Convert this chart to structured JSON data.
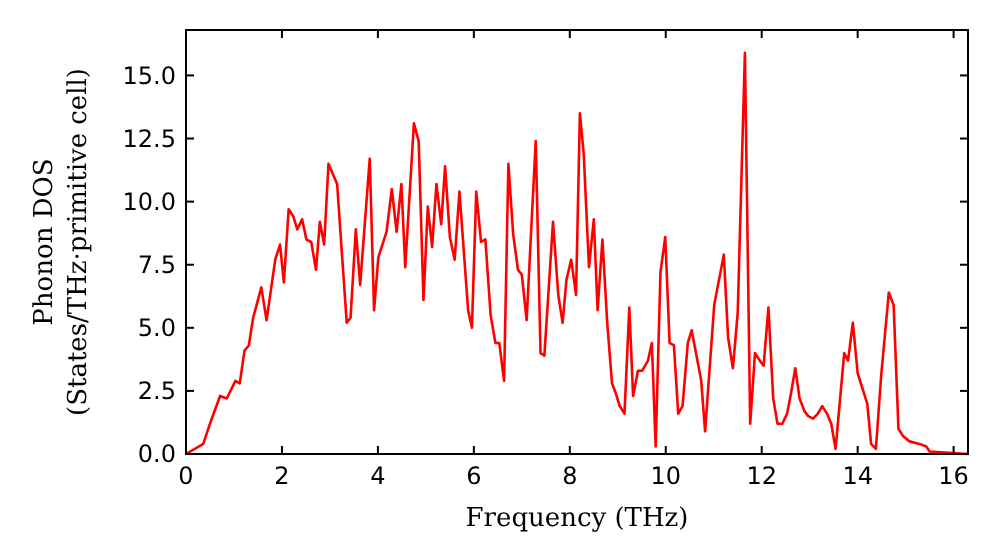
{
  "chart_data": {
    "type": "line",
    "xlabel": "Frequency (THz)",
    "ylabel": "Phonon DOS\n(States/THz·primitive cell)",
    "xlim": [
      0,
      16.3
    ],
    "ylim": [
      0,
      16.8
    ],
    "xticks": [
      0,
      2,
      4,
      6,
      8,
      10,
      12,
      14,
      16
    ],
    "yticks": [
      {
        "value": 0,
        "label": "0.0"
      },
      {
        "value": 2.5,
        "label": "2.5"
      },
      {
        "value": 5,
        "label": "5.0"
      },
      {
        "value": 7.5,
        "label": "7.5"
      },
      {
        "value": 10,
        "label": "10.0"
      },
      {
        "value": 12.5,
        "label": "12.5"
      },
      {
        "value": 15,
        "label": "15.0"
      }
    ],
    "grid": false,
    "line_style": "solid",
    "marker": "none",
    "series": [
      {
        "color": "#ff0000",
        "x": [
          0,
          0.36,
          0.5,
          0.71,
          0.85,
          1.03,
          1.12,
          1.22,
          1.31,
          1.4,
          1.57,
          1.68,
          1.86,
          1.96,
          2.04,
          2.14,
          2.24,
          2.32,
          2.42,
          2.51,
          2.61,
          2.71,
          2.79,
          2.88,
          2.97,
          3.15,
          3.35,
          3.43,
          3.54,
          3.63,
          3.83,
          3.92,
          4.01,
          4.18,
          4.29,
          4.39,
          4.49,
          4.57,
          4.75,
          4.85,
          4.95,
          5.04,
          5.13,
          5.22,
          5.32,
          5.4,
          5.5,
          5.6,
          5.7,
          5.88,
          5.96,
          6.05,
          6.15,
          6.24,
          6.35,
          6.45,
          6.53,
          6.63,
          6.72,
          6.82,
          6.92,
          7.0,
          7.1,
          7.29,
          7.39,
          7.47,
          7.65,
          7.76,
          7.85,
          7.93,
          8.03,
          8.13,
          8.21,
          8.29,
          8.4,
          8.5,
          8.58,
          8.68,
          8.78,
          8.88,
          8.96,
          9.04,
          9.14,
          9.24,
          9.32,
          9.42,
          9.51,
          9.63,
          9.71,
          9.79,
          9.89,
          9.99,
          10.08,
          10.17,
          10.26,
          10.35,
          10.46,
          10.54,
          10.74,
          10.82,
          11.01,
          11.21,
          11.3,
          11.4,
          11.5,
          11.65,
          11.76,
          11.86,
          11.96,
          12.04,
          12.14,
          12.24,
          12.33,
          12.43,
          12.53,
          12.61,
          12.7,
          12.79,
          12.89,
          12.97,
          13.07,
          13.17,
          13.26,
          13.36,
          13.45,
          13.54,
          13.72,
          13.8,
          13.9,
          14.0,
          14.2,
          14.28,
          14.38,
          14.49,
          14.65,
          14.75,
          14.85,
          14.95,
          15.08,
          15.29,
          15.43,
          15.5,
          16.3
        ],
        "values": [
          0,
          0.4,
          1.2,
          2.3,
          2.2,
          2.9,
          2.8,
          4.1,
          4.3,
          5.4,
          6.6,
          5.3,
          7.7,
          8.3,
          6.8,
          9.7,
          9.4,
          8.9,
          9.3,
          8.5,
          8.4,
          7.3,
          9.2,
          8.3,
          11.5,
          10.7,
          5.2,
          5.4,
          8.9,
          6.7,
          11.7,
          5.7,
          7.8,
          8.8,
          10.5,
          8.8,
          10.7,
          7.4,
          13.1,
          12.4,
          6.1,
          9.8,
          8.2,
          10.7,
          9.1,
          11.4,
          8.6,
          7.7,
          10.4,
          5.7,
          5.0,
          10.4,
          8.4,
          8.5,
          5.5,
          4.4,
          4.4,
          2.9,
          11.5,
          8.7,
          7.3,
          7.1,
          5.3,
          12.4,
          4.0,
          3.9,
          9.2,
          6.3,
          5.2,
          6.9,
          7.7,
          6.3,
          13.5,
          11.9,
          7.4,
          9.3,
          5.7,
          8.5,
          5.2,
          2.8,
          2.4,
          1.9,
          1.6,
          5.8,
          2.3,
          3.3,
          3.3,
          3.7,
          4.4,
          0.3,
          7.2,
          8.6,
          4.4,
          4.3,
          1.6,
          1.9,
          4.4,
          4.9,
          2.9,
          0.9,
          5.9,
          7.9,
          4.6,
          3.4,
          5.6,
          15.9,
          1.2,
          4.0,
          3.7,
          3.5,
          5.8,
          2.2,
          1.2,
          1.2,
          1.6,
          2.4,
          3.4,
          2.2,
          1.7,
          1.5,
          1.4,
          1.6,
          1.9,
          1.6,
          1.2,
          0.2,
          4.0,
          3.7,
          5.2,
          3.2,
          2.0,
          0.4,
          0.2,
          3.1,
          6.4,
          5.9,
          1.0,
          0.7,
          0.5,
          0.4,
          0.3,
          0.1,
          0
        ]
      }
    ]
  }
}
